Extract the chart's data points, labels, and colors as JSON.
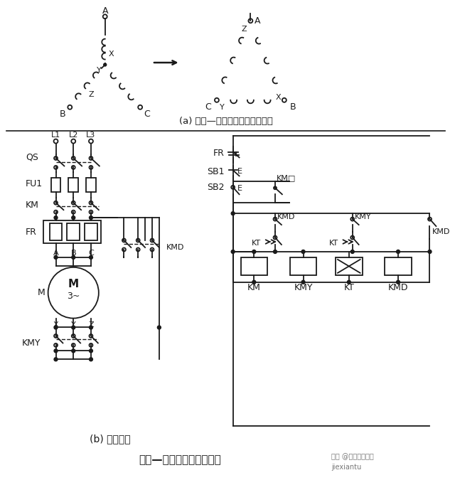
{
  "title": "星形—三角形启动控制线路",
  "subtitle_a": "(a) 星形—三角形转换绕组连接图",
  "subtitle_b": "(b) 控制线路",
  "line_color": "#1a1a1a",
  "text_color": "#1a1a1a",
  "watermark1": "头条 @机械知识制造",
  "watermark2": "jiexiantu"
}
